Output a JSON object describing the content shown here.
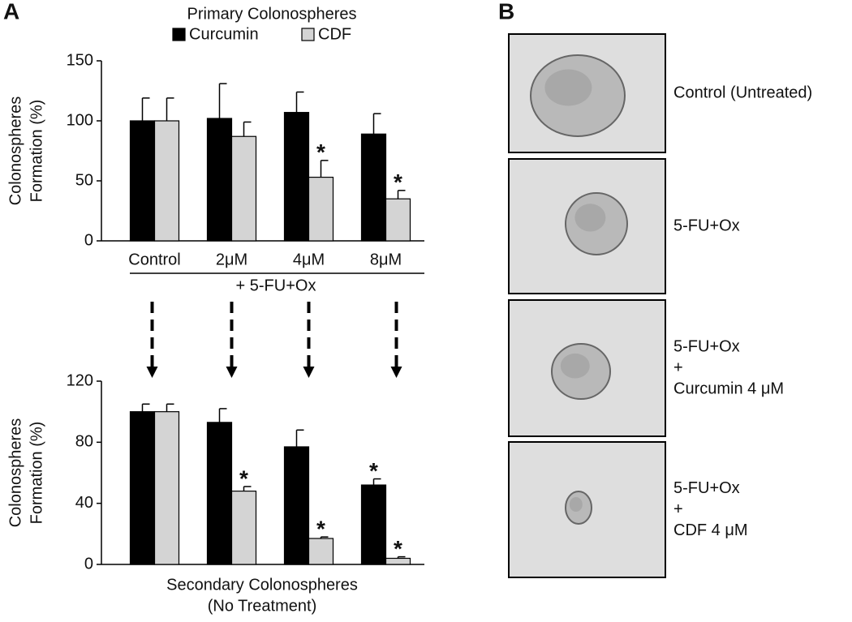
{
  "panel_labels": [
    "A",
    "B"
  ],
  "chart_data": [
    {
      "type": "bar",
      "legend_title": "Primary Colonospheres",
      "ylabel": [
        "Colonospheres",
        "Formation (%)"
      ],
      "categories": [
        "Control",
        "2μM",
        "4μM",
        "8μM"
      ],
      "treatment_label": "+  5-FU+Ox",
      "ylim": [
        0,
        150
      ],
      "yticks": [
        0,
        50,
        100,
        150
      ],
      "series": [
        {
          "name": "Curcumin",
          "color": "#000000",
          "values": [
            100,
            102,
            107,
            89
          ],
          "errors": [
            19,
            29,
            17,
            17
          ],
          "annotations": [
            null,
            null,
            null,
            null
          ]
        },
        {
          "name": "CDF",
          "color": "#d4d4d4",
          "values": [
            100,
            87,
            53,
            35
          ],
          "errors": [
            19,
            12,
            14,
            7
          ],
          "annotations": [
            null,
            null,
            "*",
            "*"
          ]
        }
      ]
    },
    {
      "type": "bar",
      "ylabel": [
        "Colonospheres",
        "Formation (%)"
      ],
      "xlabel": [
        "Secondary Colonospheres",
        "(No Treatment)"
      ],
      "categories": [
        null,
        null,
        null,
        null
      ],
      "ylim": [
        0,
        120
      ],
      "yticks": [
        0,
        40,
        80,
        120
      ],
      "series": [
        {
          "color": "#000000",
          "values": [
            100,
            93,
            77,
            52
          ],
          "errors": [
            5,
            9,
            11,
            4
          ],
          "annotations": [
            null,
            null,
            null,
            "*"
          ]
        },
        {
          "color": "#d4d4d4",
          "values": [
            100,
            48,
            17,
            4
          ],
          "errors": [
            5,
            3,
            1,
            1
          ],
          "annotations": [
            null,
            "*",
            "*",
            "*"
          ]
        }
      ]
    }
  ],
  "panel_b": {
    "images": [
      {
        "caption": [
          "Control (Untreated)"
        ]
      },
      {
        "caption": [
          "5-FU+Ox"
        ]
      },
      {
        "caption": [
          "5-FU+Ox",
          "+",
          "Curcumin 4 μM"
        ]
      },
      {
        "caption": [
          "5-FU+Ox",
          "+",
          "CDF 4 μM"
        ]
      }
    ]
  }
}
